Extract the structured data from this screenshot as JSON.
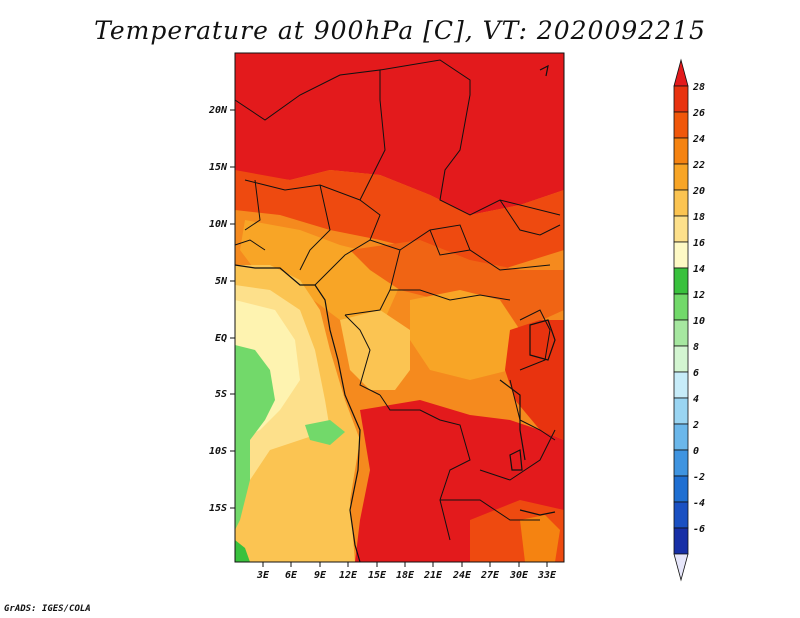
{
  "title": "Temperature at 900hPa [C], VT: 2020092215",
  "credit": "GrADS: IGES/COLA",
  "map": {
    "lat_labels": [
      "20N",
      "15N",
      "10N",
      "5N",
      "EQ",
      "5S",
      "10S",
      "15S"
    ],
    "lon_labels": [
      "3E",
      "6E",
      "9E",
      "12E",
      "15E",
      "18E",
      "21E",
      "24E",
      "27E",
      "30E",
      "33E"
    ]
  },
  "colorbar": {
    "levels": [
      "28",
      "26",
      "24",
      "22",
      "20",
      "18",
      "16",
      "14",
      "12",
      "10",
      "8",
      "6",
      "4",
      "2",
      "0",
      "-2",
      "-4",
      "-6"
    ],
    "colors": [
      "#e31a1c",
      "#e8330f",
      "#f0570a",
      "#f58311",
      "#f8a526",
      "#fbc452",
      "#fde08b",
      "#fef9c5",
      "#39c13d",
      "#72d96a",
      "#a6e7a0",
      "#d3f5d1",
      "#c7ecf9",
      "#9ad5f2",
      "#6bb7ea",
      "#3f94e0",
      "#1f6fd2",
      "#1a50c2",
      "#172fa6",
      "#101678"
    ]
  }
}
